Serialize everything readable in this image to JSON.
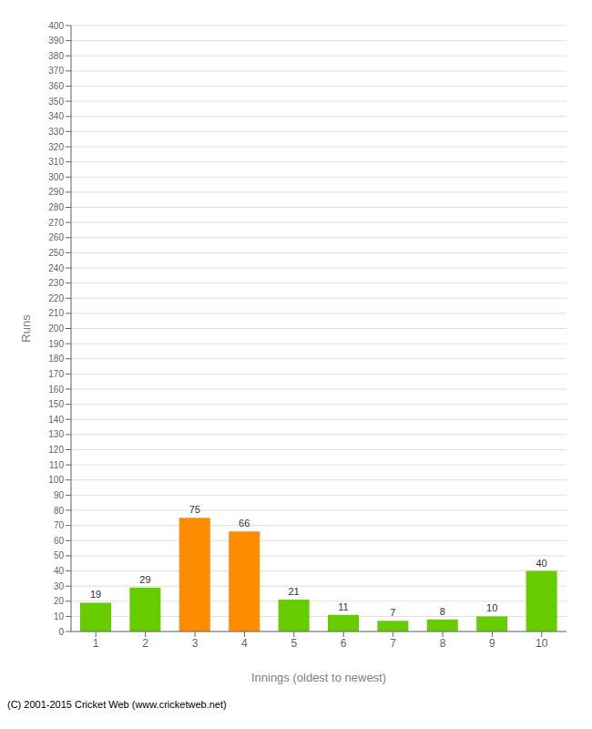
{
  "chart_data": {
    "type": "bar",
    "categories": [
      "1",
      "2",
      "3",
      "4",
      "5",
      "6",
      "7",
      "8",
      "9",
      "10"
    ],
    "values": [
      19,
      29,
      75,
      66,
      21,
      11,
      7,
      8,
      10,
      40
    ],
    "colors": [
      "#66cc00",
      "#66cc00",
      "#ff8c00",
      "#ff8c00",
      "#66cc00",
      "#66cc00",
      "#66cc00",
      "#66cc00",
      "#66cc00",
      "#66cc00"
    ],
    "xlabel": "Innings (oldest to newest)",
    "ylabel": "Runs",
    "ylim": [
      0,
      400
    ],
    "yticks": [
      0,
      10,
      20,
      30,
      40,
      50,
      60,
      70,
      80,
      90,
      100,
      110,
      120,
      130,
      140,
      150,
      160,
      170,
      180,
      190,
      200,
      210,
      220,
      230,
      240,
      250,
      260,
      270,
      280,
      290,
      300,
      310,
      320,
      330,
      340,
      350,
      360,
      370,
      380,
      390,
      400
    ],
    "grid": true,
    "data_labels": true,
    "annotations": [
      "(C) 2001-2015 Cricket Web (www.cricketweb.net)"
    ]
  }
}
